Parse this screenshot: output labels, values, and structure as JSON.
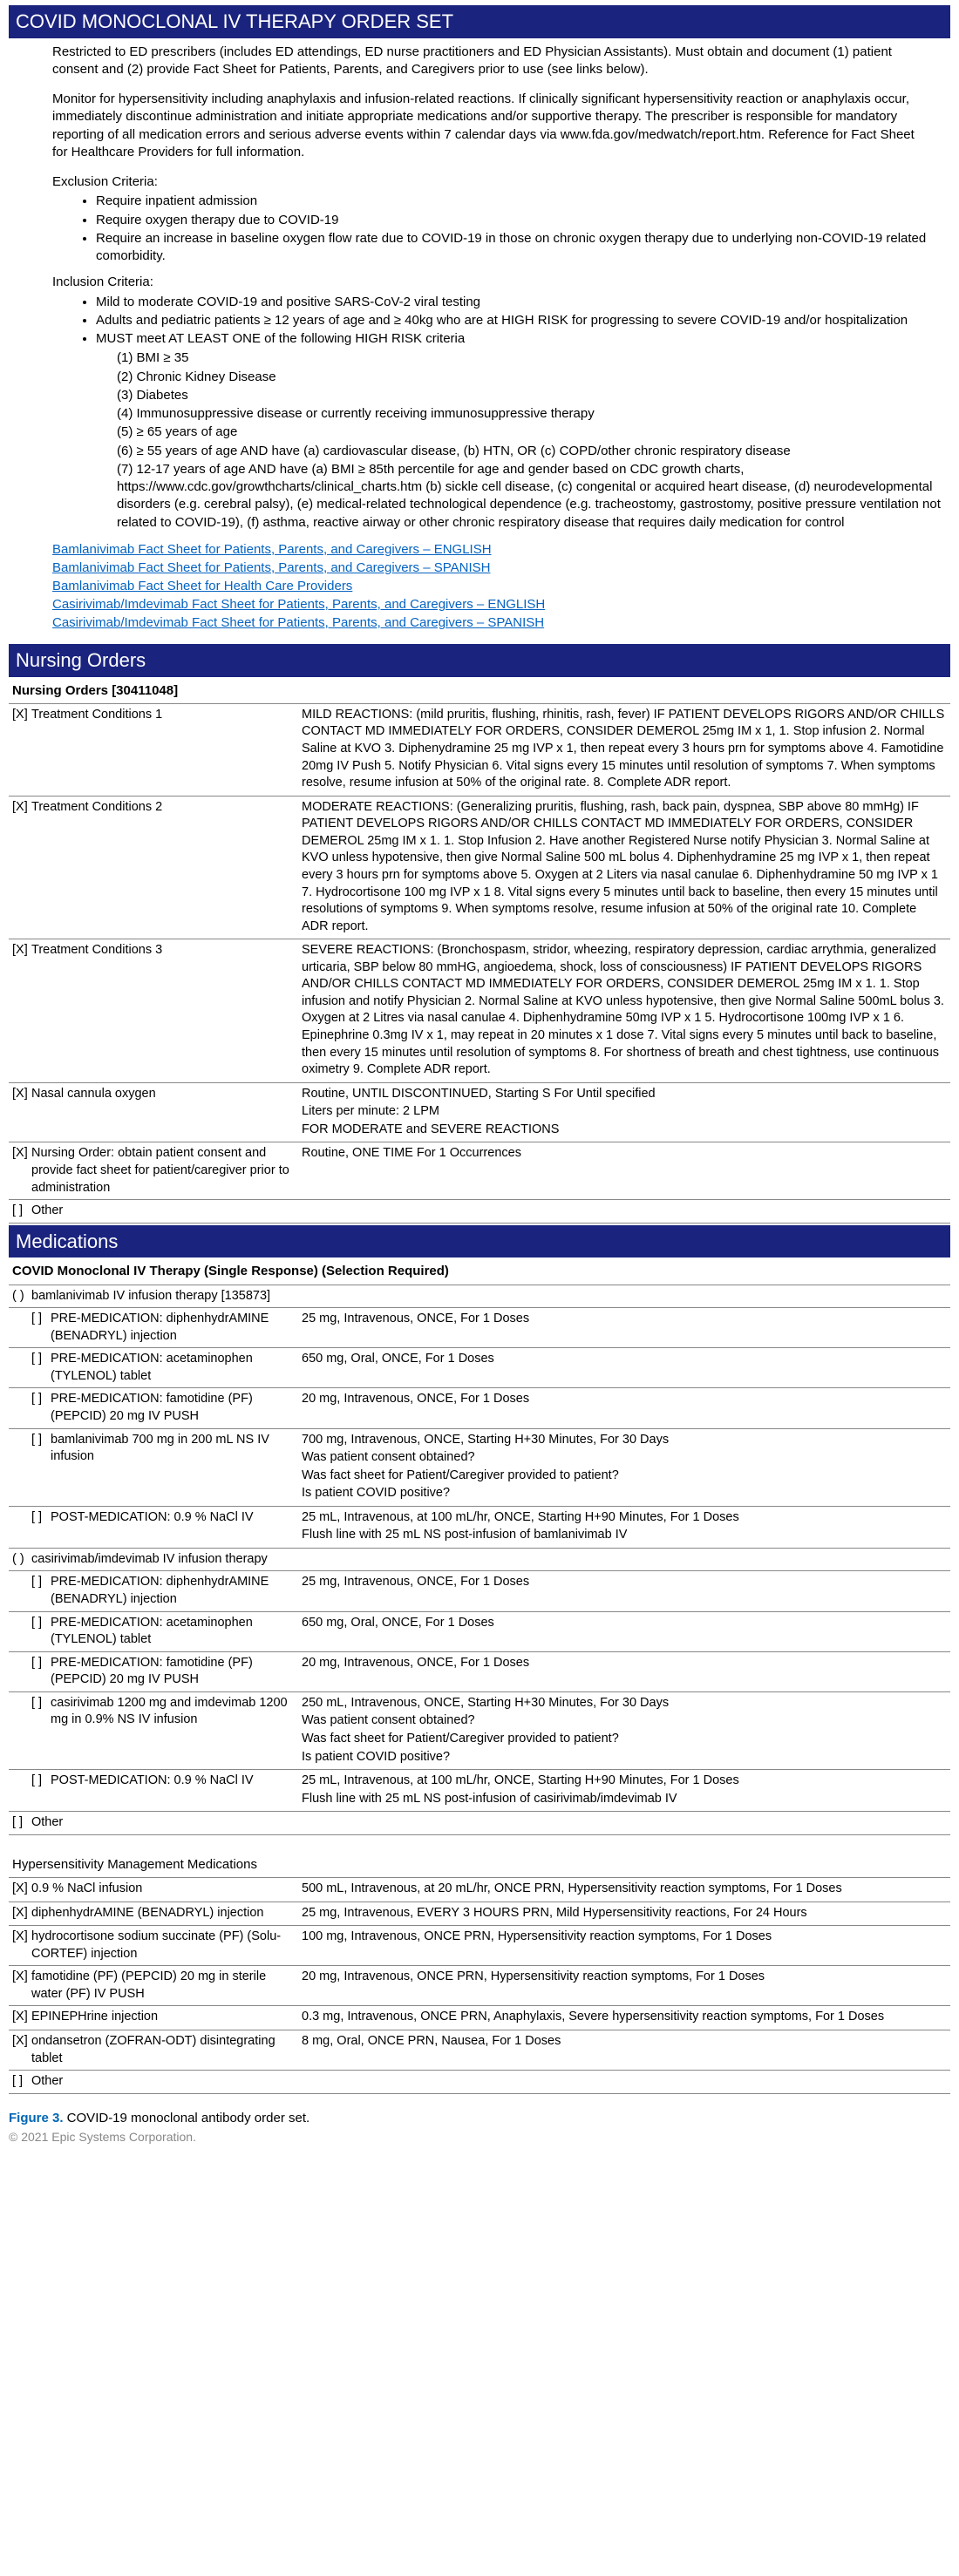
{
  "colors": {
    "header_bg": "#1a237e",
    "header_fg": "#ffffff",
    "link": "#0563c1",
    "border": "#888888",
    "figure_label": "#0066b3",
    "copyright": "#888888"
  },
  "title": "COVID MONOCLONAL IV THERAPY ORDER SET",
  "intro": {
    "p1": "Restricted to ED prescribers (includes ED attendings, ED nurse practitioners and ED Physician Assistants). Must obtain and document (1) patient consent and (2) provide Fact Sheet for Patients, Parents, and Caregivers prior to use (see links below).",
    "p2": "Monitor for hypersensitivity including anaphylaxis and infusion-related reactions. If clinically significant hypersensitivity reaction or anaphylaxis occur, immediately discontinue administration and initiate appropriate medications and/or supportive therapy. The prescriber is responsible for mandatory reporting of all medication errors and serious adverse events within 7 calendar days via www.fda.gov/medwatch/report.htm. Reference for Fact Sheet for Healthcare Providers for full information."
  },
  "exclusion": {
    "label": "Exclusion Criteria:",
    "items": [
      "Require inpatient admission",
      "Require oxygen therapy due to COVID-19",
      "Require an increase in baseline oxygen flow rate due to COVID-19 in those on chronic oxygen therapy due to underlying non-COVID-19 related comorbidity."
    ]
  },
  "inclusion": {
    "label": "Inclusion Criteria:",
    "items": [
      "Mild to moderate COVID-19 and positive SARS-CoV-2 viral testing",
      "Adults and pediatric patients ≥ 12 years of age and ≥ 40kg who are at HIGH RISK for progressing to severe COVID-19 and/or hospitalization"
    ],
    "must_label": "MUST meet AT LEAST ONE of the following HIGH RISK criteria",
    "criteria": [
      "(1)  BMI ≥ 35",
      "(2)  Chronic Kidney Disease",
      "(3)  Diabetes",
      "(4)  Immunosuppressive disease or currently receiving immunosuppressive therapy",
      "(5)  ≥ 65 years of age",
      "(6)  ≥ 55 years of age AND have (a) cardiovascular disease, (b) HTN, OR (c) COPD/other chronic respiratory disease",
      "(7)  12-17 years of age AND have (a) BMI ≥  85th percentile for age and gender based on CDC growth charts, https://www.cdc.gov/growthcharts/clinical_charts.htm (b) sickle cell disease, (c) congenital or acquired heart disease, (d) neurodevelopmental disorders (e.g. cerebral palsy), (e) medical-related technological dependence (e.g. tracheostomy, gastrostomy, positive pressure ventilation not related to COVID-19), (f) asthma, reactive airway or other chronic respiratory disease that requires daily medication for control"
    ]
  },
  "links": [
    "Bamlanivimab Fact Sheet for Patients, Parents, and Caregivers – ENGLISH ",
    "Bamlanivimab Fact Sheet for Patients, Parents, and Caregivers – SPANISH ",
    "Bamlanivimab Fact Sheet for Health Care Providers ",
    "Casirivimab/Imdevimab Fact Sheet for Patients, Parents, and Caregivers – ENGLISH ",
    "Casirivimab/Imdevimab Fact Sheet for Patients, Parents, and Caregivers – SPANISH"
  ],
  "nursing": {
    "header": "Nursing Orders",
    "group": "Nursing Orders [30411048]",
    "rows": [
      {
        "cb": "[X]",
        "name": "Treatment Conditions 1",
        "details": [
          "MILD REACTIONS: (mild pruritis, flushing, rhinitis, rash, fever) IF PATIENT DEVELOPS RIGORS AND/OR CHILLS CONTACT MD IMMEDIATELY FOR ORDERS, CONSIDER DEMEROL 25mg IM x 1, 1. Stop infusion 2. Normal Saline at KVO 3. Diphenydramine 25 mg IVP x 1, then repeat every 3 hours prn for symptoms above 4. Famotidine 20mg IV Push 5. Notify Physician 6. Vital signs every 15 minutes until resolution of symptoms 7. When symptoms resolve, resume infusion at 50% of the original rate. 8. Complete ADR report."
        ]
      },
      {
        "cb": "[X]",
        "name": "Treatment Conditions 2",
        "details": [
          "MODERATE REACTIONS: (Generalizing pruritis, flushing, rash, back pain, dyspnea, SBP above 80 mmHg) IF PATIENT DEVELOPS RIGORS AND/OR CHILLS CONTACT MD IMMEDIATELY FOR ORDERS, CONSIDER DEMEROL 25mg IM x 1. 1. Stop Infusion 2. Have another Registered Nurse notify Physician 3. Normal Saline at KVO unless hypotensive, then give Normal Saline 500 mL bolus 4. Diphenhydramine 25 mg IVP x 1, then repeat every 3 hours prn for symptoms above 5. Oxygen at 2 Liters via nasal canulae 6. Diphenhydramine 50 mg IVP x 1 7. Hydrocortisone 100 mg IVP x 1 8. Vital signs every 5 minutes until back to baseline, then every 15 minutes until resolutions of symptoms 9. When symptoms resolve, resume infusion at 50% of the original rate 10. Complete ADR report."
        ]
      },
      {
        "cb": "[X]",
        "name": "Treatment Conditions 3",
        "details": [
          "SEVERE REACTIONS: (Bronchospasm, stridor, wheezing, respiratory depression, cardiac arrythmia, generalized urticaria, SBP below 80 mmHG, angioedema, shock, loss of consciousness) IF PATIENT DEVELOPS RIGORS AND/OR CHILLS CONTACT MD IMMEDIATELY FOR ORDERS, CONSIDER DEMEROL 25mg IM x 1. 1. Stop infusion and notify Physician 2. Normal Saline at KVO unless hypotensive, then give Normal Saline 500mL bolus 3. Oxygen at 2 Litres via nasal canulae 4. Diphenhydramine 50mg IVP x 1 5. Hydrocortisone 100mg IVP x 1 6. Epinephrine 0.3mg IV x 1, may repeat in 20 minutes x 1 dose 7. Vital signs every 5 minutes until back to baseline, then every 15 minutes until resolution of symptoms 8. For shortness of breath and chest tightness, use continuous oximetry 9. Complete ADR report."
        ]
      },
      {
        "cb": "[X]",
        "name": "Nasal cannula oxygen",
        "details": [
          "Routine, UNTIL DISCONTINUED, Starting S For Until specified",
          "Liters per minute: 2 LPM",
          "FOR MODERATE and SEVERE REACTIONS"
        ]
      },
      {
        "cb": "[X]",
        "name": "Nursing Order: obtain patient consent and provide fact sheet for patient/caregiver prior to administration",
        "details": [
          "Routine, ONE TIME For 1 Occurrences"
        ]
      },
      {
        "cb": "[ ]",
        "name": "Other",
        "details": []
      }
    ]
  },
  "meds": {
    "header": "Medications",
    "group1": "COVID Monoclonal IV Therapy (Single Response) (Selection Required)",
    "opt1": {
      "paren": "( )",
      "name": "bamlanivimab IV infusion therapy [135873]"
    },
    "opt1_rows": [
      {
        "cb": "[ ]",
        "name": "PRE-MEDICATION: diphenhydrAMINE (BENADRYL) injection",
        "details": [
          "25 mg, Intravenous, ONCE, For 1 Doses"
        ]
      },
      {
        "cb": "[ ]",
        "name": "PRE-MEDICATION: acetaminophen (TYLENOL) tablet",
        "details": [
          "650 mg, Oral, ONCE, For 1 Doses"
        ]
      },
      {
        "cb": "[ ]",
        "name": "PRE-MEDICATION: famotidine (PF) (PEPCID) 20 mg   IV PUSH",
        "details": [
          "20 mg, Intravenous, ONCE, For 1 Doses"
        ]
      },
      {
        "cb": "[ ]",
        "name": "bamlanivimab 700 mg in 200 mL NS IV infusion",
        "details": [
          "700 mg, Intravenous, ONCE, Starting H+30 Minutes, For 30 Days",
          "Was patient consent obtained?",
          "Was fact sheet for Patient/Caregiver provided to patient?",
          "Is patient COVID positive?"
        ]
      },
      {
        "cb": "[ ]",
        "name": "POST-MEDICATION: 0.9 % NaCl IV",
        "details": [
          "25 mL, Intravenous, at 100 mL/hr, ONCE, Starting H+90 Minutes, For 1 Doses",
          "Flush line with 25 mL NS post-infusion of bamlanivimab IV"
        ]
      }
    ],
    "opt2": {
      "paren": "( )",
      "name": "casirivimab/imdevimab IV infusion therapy"
    },
    "opt2_rows": [
      {
        "cb": "[ ]",
        "name": "PRE-MEDICATION: diphenhydrAMINE (BENADRYL) injection",
        "details": [
          "25 mg, Intravenous, ONCE, For 1 Doses"
        ]
      },
      {
        "cb": "[ ]",
        "name": "PRE-MEDICATION: acetaminophen (TYLENOL) tablet",
        "details": [
          "650 mg, Oral, ONCE, For 1 Doses"
        ]
      },
      {
        "cb": "[ ]",
        "name": "PRE-MEDICATION: famotidine (PF) (PEPCID) 20 mg   IV PUSH",
        "details": [
          "20 mg, Intravenous, ONCE, For 1 Doses"
        ]
      },
      {
        "cb": "[ ]",
        "name": "casirivimab 1200 mg and imdevimab 1200 mg in 0.9% NS IV infusion",
        "details": [
          "250 mL, Intravenous, ONCE, Starting H+30 Minutes, For 30 Days",
          "Was patient consent obtained?",
          "Was fact sheet for Patient/Caregiver provided to patient?",
          "Is patient COVID positive?"
        ]
      },
      {
        "cb": "[ ]",
        "name": "POST-MEDICATION: 0.9 % NaCl IV",
        "details": [
          "25 mL, Intravenous, at 100 mL/hr, ONCE, Starting H+90 Minutes, For 1 Doses",
          "Flush line with 25 mL NS post-infusion of casirivimab/imdevimab IV"
        ]
      }
    ],
    "other1": {
      "cb": "[ ]",
      "name": "Other"
    },
    "group2": "Hypersensitivity Management Medications",
    "hrows": [
      {
        "cb": "[X]",
        "name": "0.9 % NaCl infusion",
        "details": [
          "500 mL, Intravenous, at 20 mL/hr, ONCE PRN, Hypersensitivity reaction symptoms, For 1 Doses"
        ]
      },
      {
        "cb": "[X]",
        "name": "diphenhydrAMINE (BENADRYL) injection",
        "details": [
          "25 mg, Intravenous, EVERY 3 HOURS PRN, Mild Hypersensitivity reactions, For 24 Hours"
        ]
      },
      {
        "cb": "[X]",
        "name": "hydrocortisone sodium succinate (PF) (Solu-CORTEF) injection",
        "details": [
          "100 mg, Intravenous, ONCE PRN, Hypersensitivity reaction symptoms, For 1 Doses"
        ]
      },
      {
        "cb": "[X]",
        "name": "famotidine (PF) (PEPCID) 20 mg in sterile water (PF) IV PUSH",
        "details": [
          "20 mg, Intravenous, ONCE PRN, Hypersensitivity reaction symptoms, For 1 Doses"
        ]
      },
      {
        "cb": "[X]",
        "name": "EPINEPHrine injection",
        "details": [
          "0.3 mg, Intravenous, ONCE PRN, Anaphylaxis, Severe hypersensitivity reaction symptoms, For 1 Doses"
        ]
      },
      {
        "cb": "[X]",
        "name": "ondansetron (ZOFRAN-ODT) disintegrating tablet",
        "details": [
          "8 mg, Oral, ONCE PRN, Nausea, For 1 Doses"
        ]
      },
      {
        "cb": "[ ]",
        "name": "Other",
        "details": []
      }
    ]
  },
  "footer": {
    "label": "Figure 3.",
    "text": " COVID-19 monoclonal antibody order set.",
    "copyright": "© 2021 Epic Systems Corporation."
  }
}
